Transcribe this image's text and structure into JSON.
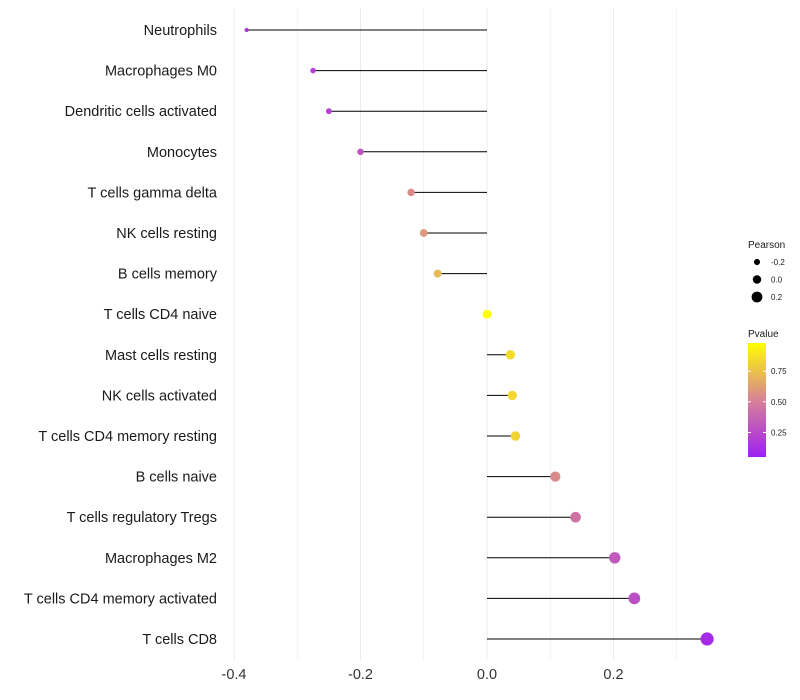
{
  "chart_data": {
    "type": "lollipop",
    "title": "",
    "xlabel": "",
    "ylabel": "",
    "xlim": [
      -0.4,
      0.35
    ],
    "x_ticks": [
      -0.4,
      -0.2,
      0.0,
      0.2
    ],
    "x_tick_labels": [
      "-0.4",
      "-0.2",
      "0.0",
      "0.2"
    ],
    "grid": "vertical",
    "legend_position": "right",
    "points": [
      {
        "category": "Neutrophils",
        "pearson": -0.38,
        "pvalue": 0.15
      },
      {
        "category": "Macrophages M0",
        "pearson": -0.275,
        "pvalue": 0.2
      },
      {
        "category": "Dendritic cells activated",
        "pearson": -0.25,
        "pvalue": 0.22
      },
      {
        "category": "Monocytes",
        "pearson": -0.2,
        "pvalue": 0.3
      },
      {
        "category": "T cells gamma delta",
        "pearson": -0.12,
        "pvalue": 0.55
      },
      {
        "category": "NK cells resting",
        "pearson": -0.1,
        "pvalue": 0.6
      },
      {
        "category": "B cells memory",
        "pearson": -0.078,
        "pvalue": 0.72
      },
      {
        "category": "T cells CD4 naive",
        "pearson": 0.0,
        "pvalue": 0.98
      },
      {
        "category": "Mast cells resting",
        "pearson": 0.037,
        "pvalue": 0.85
      },
      {
        "category": "NK cells activated",
        "pearson": 0.04,
        "pvalue": 0.83
      },
      {
        "category": "T cells CD4 memory resting",
        "pearson": 0.045,
        "pvalue": 0.82
      },
      {
        "category": "B cells naive",
        "pearson": 0.108,
        "pvalue": 0.55
      },
      {
        "category": "T cells regulatory  Tregs ",
        "pearson": 0.14,
        "pvalue": 0.45
      },
      {
        "category": "Macrophages M2",
        "pearson": 0.202,
        "pvalue": 0.32
      },
      {
        "category": "T cells CD4 memory activated",
        "pearson": 0.233,
        "pvalue": 0.27
      },
      {
        "category": "T cells CD8",
        "pearson": 0.348,
        "pvalue": 0.1
      }
    ],
    "size_legend": {
      "title": "Pearson",
      "values": [
        -0.2,
        0.0,
        0.2
      ],
      "labels": [
        "-0.2",
        "0.0",
        "0.2"
      ]
    },
    "color_legend": {
      "title": "Pvalue",
      "range": [
        0.05,
        0.98
      ],
      "ticks": [
        0.25,
        0.5,
        0.75
      ],
      "tick_labels": [
        "0.25",
        "0.50",
        "0.75"
      ],
      "low_color": "#a020f0",
      "high_color": "#ffff00"
    },
    "colors": {
      "grid": "#ebebeb",
      "segment": "#000000",
      "text": "#1a1a1a"
    }
  }
}
